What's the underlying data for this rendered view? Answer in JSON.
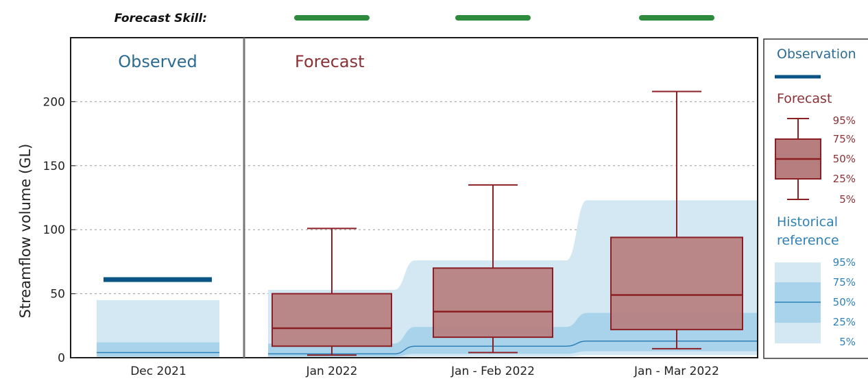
{
  "skill_label": "Forecast Skill:",
  "colors": {
    "observed": "#0a5586",
    "forecast_fill": "#b77e7f",
    "forecast_line": "#8b1f24",
    "hist_outer": "#d3e8f3",
    "hist_inner": "#a9d3ea",
    "hist_median": "#2e81b8",
    "skill": "#2e8b3d"
  },
  "chart_data": {
    "type": "box",
    "ylabel": "Streamflow volume (GL)",
    "ylim": [
      0,
      250
    ],
    "yticks": [
      0,
      50,
      100,
      150,
      200
    ],
    "grid": true,
    "grid_style": "dotted horizontal",
    "section_labels": {
      "observed": "Observed",
      "forecast": "Forecast"
    },
    "categories": [
      "Dec 2021",
      "Jan 2022",
      "Jan - Feb 2022",
      "Jan - Mar 2022"
    ],
    "forecast_skill": [
      "good",
      "good",
      "good"
    ],
    "observation": {
      "category": "Dec 2021",
      "value": 61
    },
    "forecast": [
      {
        "category": "Jan 2022",
        "p5": 2,
        "p25": 9,
        "p50": 23,
        "p75": 50,
        "p95": 101
      },
      {
        "category": "Jan - Feb 2022",
        "p5": 4,
        "p25": 16,
        "p50": 36,
        "p75": 70,
        "p95": 135
      },
      {
        "category": "Jan - Mar 2022",
        "p5": 7,
        "p25": 22,
        "p50": 49,
        "p75": 94,
        "p95": 208
      }
    ],
    "historical_reference": [
      {
        "category": "Dec 2021",
        "p5": 0,
        "p25": 1,
        "p50": 4,
        "p75": 12,
        "p95": 45
      },
      {
        "category": "Jan 2022",
        "p5": 0,
        "p25": 1,
        "p50": 3,
        "p75": 11,
        "p95": 53
      },
      {
        "category": "Jan - Feb 2022",
        "p5": 1,
        "p25": 3,
        "p50": 9,
        "p75": 24,
        "p95": 76
      },
      {
        "category": "Jan - Mar 2022",
        "p5": 2,
        "p25": 5,
        "p50": 13,
        "p75": 35,
        "p95": 123
      }
    ],
    "legend": {
      "position": "right",
      "observation": "Observation",
      "forecast": "Forecast",
      "historical": [
        "Historical",
        "reference"
      ],
      "forecast_levels": [
        "95%",
        "75%",
        "50%",
        "25%",
        "5%"
      ],
      "historical_levels": [
        "95%",
        "75%",
        "50%",
        "25%",
        "5%"
      ]
    }
  }
}
